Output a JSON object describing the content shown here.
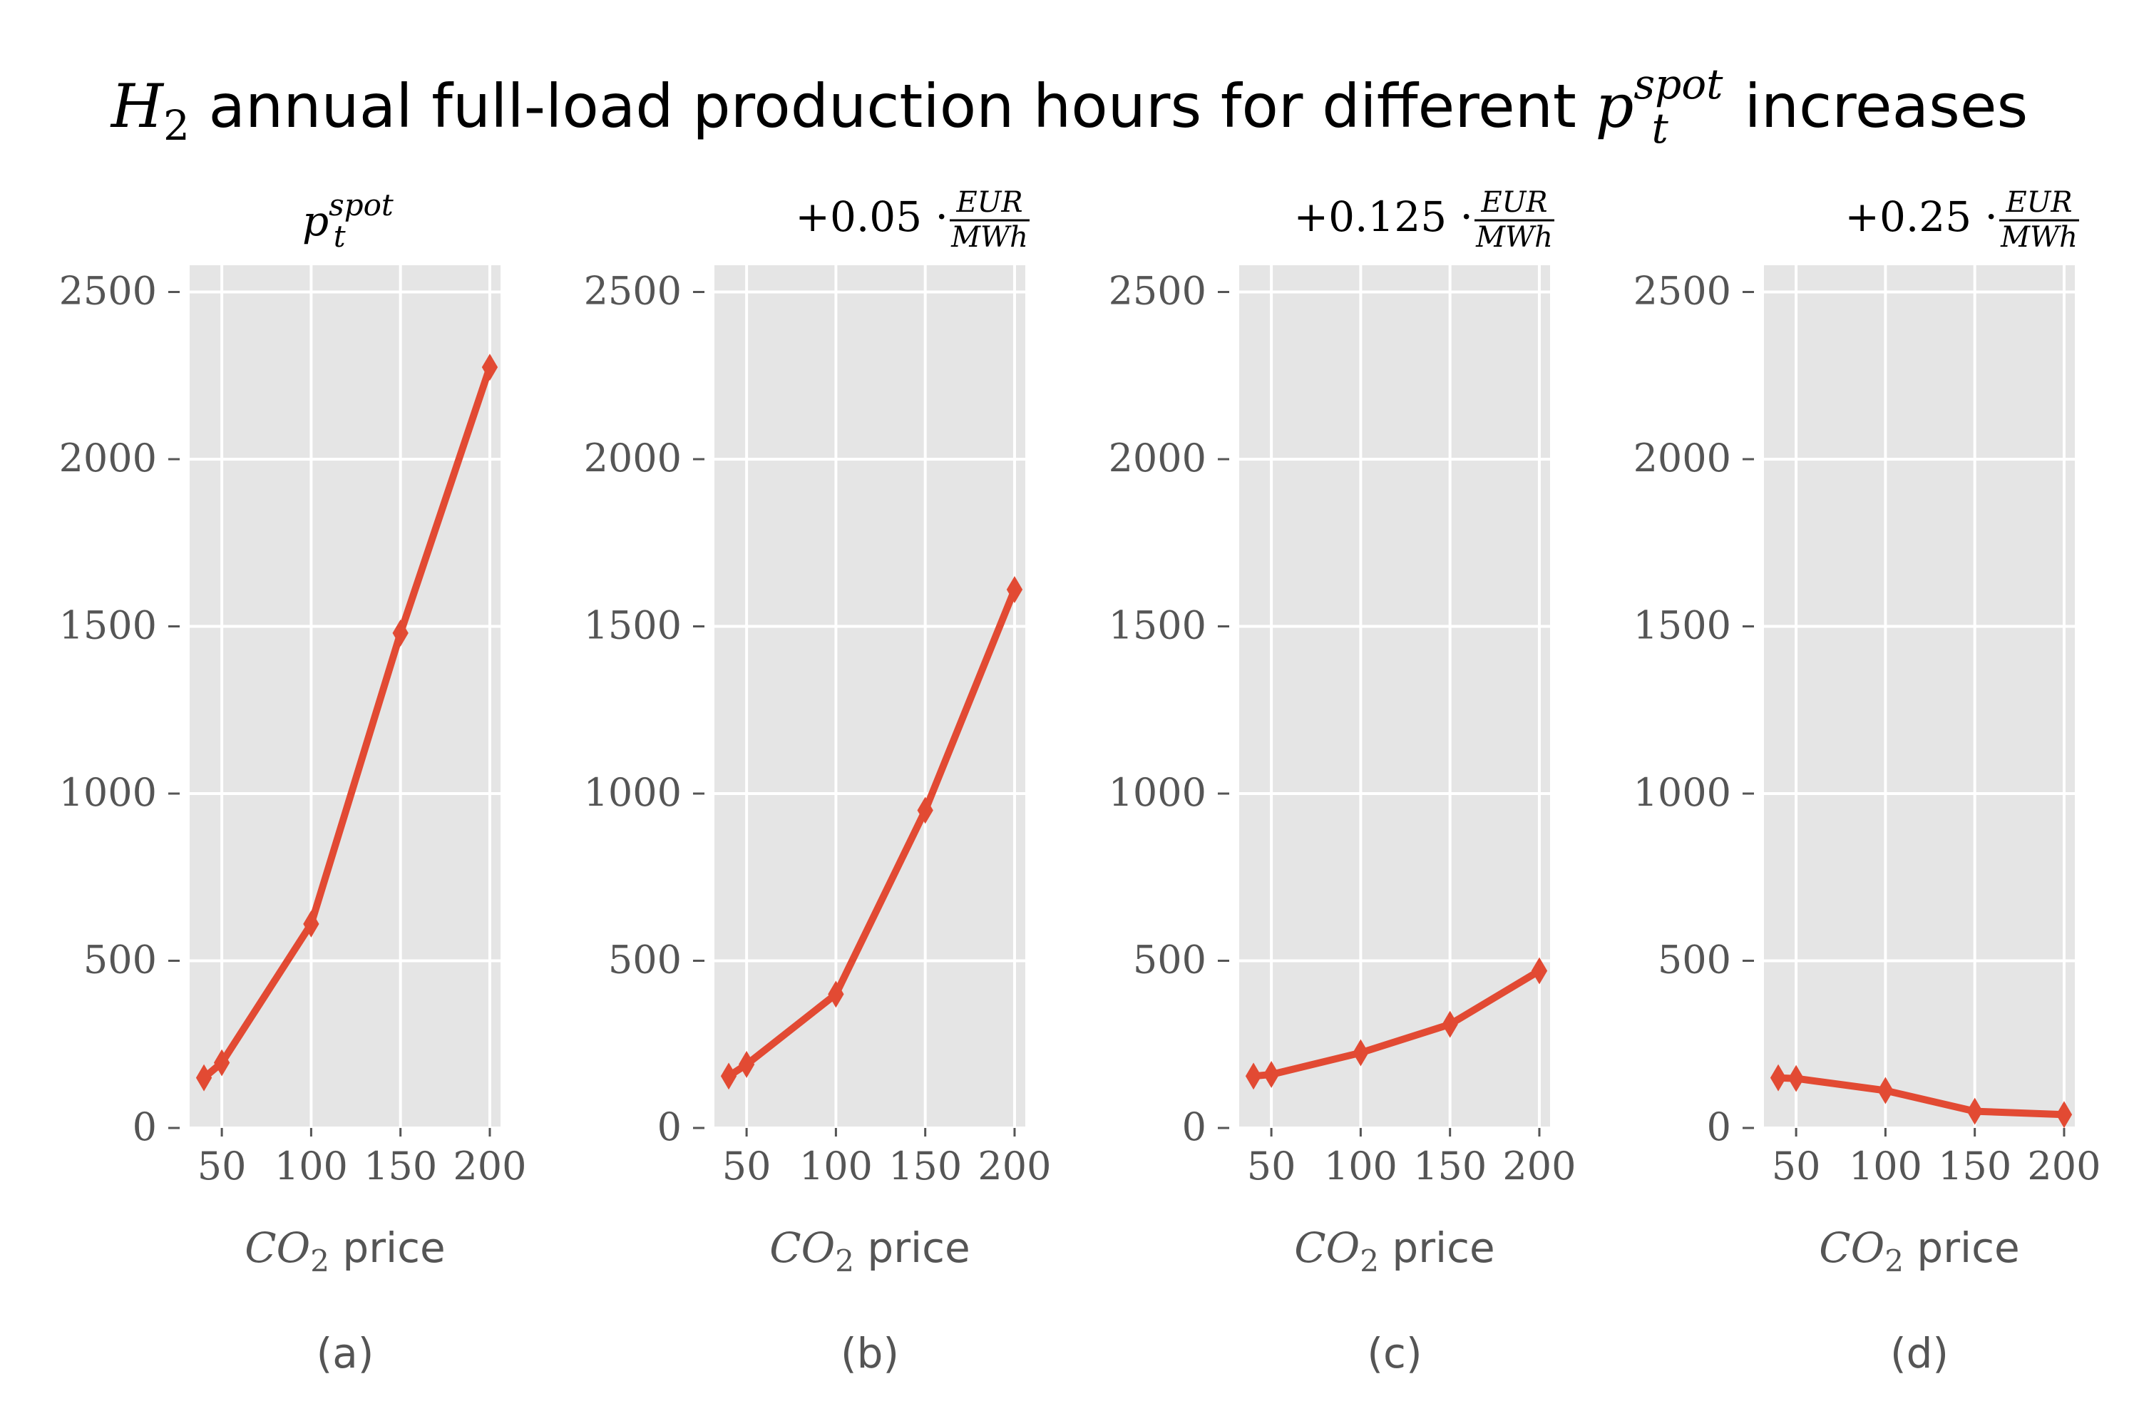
{
  "figure": {
    "title_prefix": "H",
    "title_prefix_sub": "2",
    "title_mid": " annual full-load production hours for different ",
    "title_p": "p",
    "title_p_sup": "spot",
    "title_p_sub": "t",
    "title_suffix": " increases"
  },
  "colors": {
    "line": "#E24A33",
    "panel_bg": "#E5E5E5",
    "grid": "#FFFFFF",
    "text": "#555555",
    "title": "#000000"
  },
  "chart_data": [
    {
      "type": "line",
      "panel_label": "(a)",
      "title_parts": {
        "p": "p",
        "sup": "spot",
        "sub": "t"
      },
      "xlabel_var": "CO",
      "xlabel_sub": "2",
      "xlabel_rest": " price",
      "ylabel": "",
      "x": [
        40,
        50,
        100,
        150,
        200
      ],
      "series": [
        {
          "values": [
            150,
            195,
            610,
            1480,
            2275
          ]
        }
      ],
      "xlim": [
        32,
        206
      ],
      "ylim": [
        0,
        2580
      ],
      "xticks": [
        50,
        100,
        150,
        200
      ],
      "yticks": [
        0,
        500,
        1000,
        1500,
        2000,
        2500
      ],
      "grid": true,
      "marker": "thin_diamond"
    },
    {
      "type": "line",
      "panel_label": "(b)",
      "title_parts": {
        "prefix": "+0.05 · ",
        "num": "EUR",
        "den": "MWh"
      },
      "xlabel_var": "CO",
      "xlabel_sub": "2",
      "xlabel_rest": " price",
      "ylabel": "",
      "x": [
        40,
        50,
        100,
        150,
        200
      ],
      "series": [
        {
          "values": [
            155,
            190,
            400,
            950,
            1610
          ]
        }
      ],
      "xlim": [
        32,
        206
      ],
      "ylim": [
        0,
        2580
      ],
      "xticks": [
        50,
        100,
        150,
        200
      ],
      "yticks": [
        0,
        500,
        1000,
        1500,
        2000,
        2500
      ],
      "grid": true,
      "marker": "thin_diamond"
    },
    {
      "type": "line",
      "panel_label": "(c)",
      "title_parts": {
        "prefix": "+0.125 · ",
        "num": "EUR",
        "den": "MWh"
      },
      "xlabel_var": "CO",
      "xlabel_sub": "2",
      "xlabel_rest": " price",
      "ylabel": "",
      "x": [
        40,
        50,
        100,
        150,
        200
      ],
      "series": [
        {
          "values": [
            155,
            160,
            225,
            310,
            470
          ]
        }
      ],
      "xlim": [
        32,
        206
      ],
      "ylim": [
        0,
        2580
      ],
      "xticks": [
        50,
        100,
        150,
        200
      ],
      "yticks": [
        0,
        500,
        1000,
        1500,
        2000,
        2500
      ],
      "grid": true,
      "marker": "thin_diamond"
    },
    {
      "type": "line",
      "panel_label": "(d)",
      "title_parts": {
        "prefix": "+0.25 · ",
        "num": "EUR",
        "den": "MWh"
      },
      "xlabel_var": "CO",
      "xlabel_sub": "2",
      "xlabel_rest": " price",
      "ylabel": "",
      "x": [
        40,
        50,
        100,
        150,
        200
      ],
      "series": [
        {
          "values": [
            150,
            148,
            112,
            50,
            40
          ]
        }
      ],
      "xlim": [
        32,
        206
      ],
      "ylim": [
        0,
        2580
      ],
      "xticks": [
        50,
        100,
        150,
        200
      ],
      "yticks": [
        0,
        500,
        1000,
        1500,
        2000,
        2500
      ],
      "grid": true,
      "marker": "thin_diamond"
    }
  ]
}
